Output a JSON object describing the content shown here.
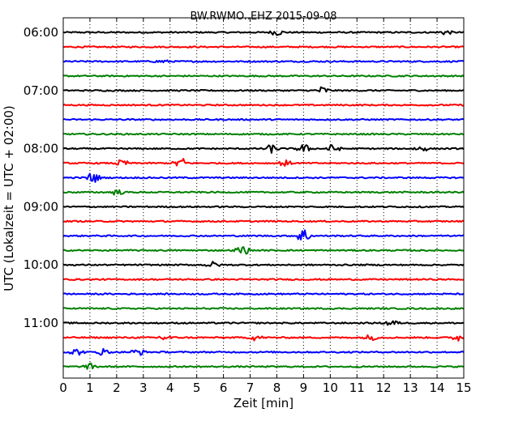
{
  "chart_data": {
    "type": "line",
    "title": "BW.RWMO..EHZ 2015-09-08",
    "xlabel": "Zeit  [min]",
    "ylabel": "UTC (Lokalzeit = UTC + 02:00)",
    "xlim": [
      0,
      15
    ],
    "xticks": [
      "0",
      "1",
      "2",
      "3",
      "4",
      "5",
      "6",
      "7",
      "8",
      "9",
      "10",
      "11",
      "12",
      "13",
      "14",
      "15"
    ],
    "yticks": [
      "06:00",
      "07:00",
      "08:00",
      "09:00",
      "10:00",
      "11:00"
    ],
    "grid": "vertical dotted at each minute",
    "colors": [
      "#000000",
      "#ff0000",
      "#0000ff",
      "#008000"
    ],
    "trace_start_times": [
      "06:00",
      "06:15",
      "06:30",
      "06:45",
      "07:00",
      "07:15",
      "07:30",
      "07:45",
      "08:00",
      "08:15",
      "08:30",
      "08:45",
      "09:00",
      "09:15",
      "09:30",
      "09:45",
      "10:00",
      "10:15",
      "10:30",
      "10:45",
      "11:00",
      "11:15",
      "11:30",
      "11:45"
    ],
    "events": [
      {
        "trace": 0,
        "minute": 8.0,
        "amp": 0.25
      },
      {
        "trace": 0,
        "minute": 14.3,
        "amp": 0.2
      },
      {
        "trace": 2,
        "minute": 3.7,
        "amp": 0.15
      },
      {
        "trace": 4,
        "minute": 9.7,
        "amp": 0.35
      },
      {
        "trace": 8,
        "minute": 7.8,
        "amp": 0.35
      },
      {
        "trace": 8,
        "minute": 9.0,
        "amp": 0.4
      },
      {
        "trace": 8,
        "minute": 10.1,
        "amp": 0.35
      },
      {
        "trace": 8,
        "minute": 13.4,
        "amp": 0.3
      },
      {
        "trace": 9,
        "minute": 2.2,
        "amp": 0.3
      },
      {
        "trace": 9,
        "minute": 4.4,
        "amp": 0.55
      },
      {
        "trace": 9,
        "minute": 8.3,
        "amp": 0.25
      },
      {
        "trace": 10,
        "minute": 1.1,
        "amp": 0.5
      },
      {
        "trace": 11,
        "minute": 2.0,
        "amp": 0.25
      },
      {
        "trace": 14,
        "minute": 9.0,
        "amp": 0.7
      },
      {
        "trace": 15,
        "minute": 6.7,
        "amp": 0.45
      },
      {
        "trace": 16,
        "minute": 5.6,
        "amp": 0.25
      },
      {
        "trace": 20,
        "minute": 12.3,
        "amp": 0.3
      },
      {
        "trace": 21,
        "minute": 3.8,
        "amp": 0.3
      },
      {
        "trace": 21,
        "minute": 7.2,
        "amp": 0.25
      },
      {
        "trace": 21,
        "minute": 11.5,
        "amp": 0.25
      },
      {
        "trace": 21,
        "minute": 14.8,
        "amp": 0.3
      },
      {
        "trace": 22,
        "minute": 0.5,
        "amp": 0.3
      },
      {
        "trace": 22,
        "minute": 1.5,
        "amp": 0.3
      },
      {
        "trace": 22,
        "minute": 2.8,
        "amp": 0.3
      },
      {
        "trace": 23,
        "minute": 1.0,
        "amp": 0.25
      }
    ]
  }
}
